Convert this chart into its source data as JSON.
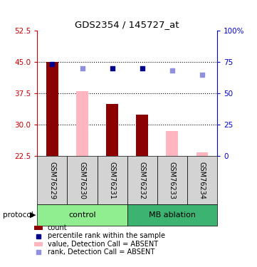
{
  "title": "GDS2354 / 145727_at",
  "samples": [
    "GSM76229",
    "GSM76230",
    "GSM76231",
    "GSM76232",
    "GSM76233",
    "GSM76234"
  ],
  "group_labels": [
    "control",
    "MB ablation"
  ],
  "ylim_left": [
    22.5,
    52.5
  ],
  "ylim_right": [
    0,
    100
  ],
  "yticks_left": [
    22.5,
    30,
    37.5,
    45,
    52.5
  ],
  "yticks_right": [
    0,
    25,
    50,
    75,
    100
  ],
  "bar_values_red": [
    45.0,
    null,
    35.0,
    32.5,
    null,
    null
  ],
  "bar_values_pink": [
    null,
    38.0,
    null,
    null,
    28.5,
    23.5
  ],
  "dot_values_blue": [
    44.5,
    null,
    43.5,
    43.5,
    null,
    null
  ],
  "dot_values_lightblue": [
    null,
    43.5,
    null,
    null,
    43.0,
    42.0
  ],
  "bar_color_red": "#8B0000",
  "bar_color_pink": "#FFB6C1",
  "dot_color_blue": "#00008B",
  "dot_color_lightblue": "#9090E0",
  "control_color": "#90EE90",
  "mb_color": "#3CB371",
  "header_bg": "#D3D3D3",
  "left_axis_color": "#CC0000",
  "right_axis_color": "#0000CC"
}
